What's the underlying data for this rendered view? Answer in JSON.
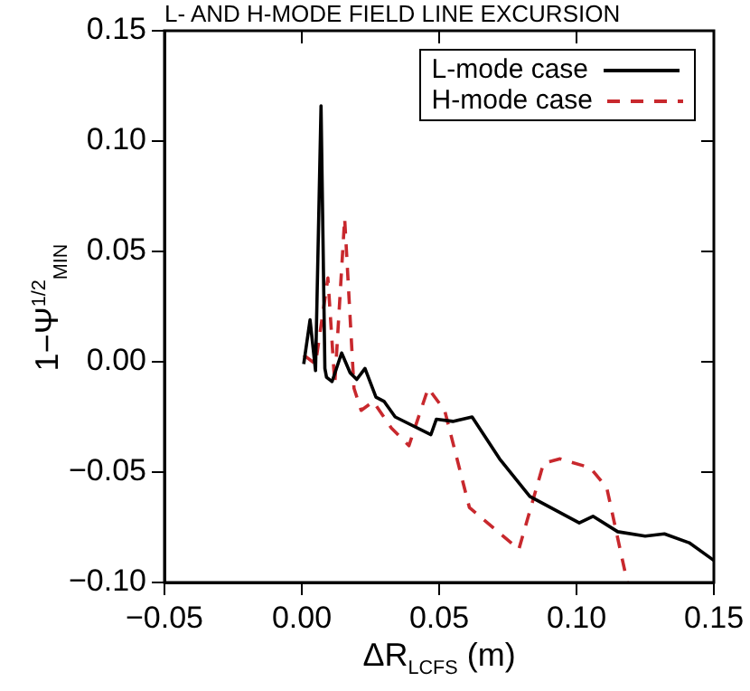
{
  "chart_data": {
    "type": "line",
    "title": "L- AND H-MODE FIELD LINE EXCURSION",
    "xlabel": "ΔR$_{LCFS}$ (m)",
    "ylabel": "1−Ψ$^{1/2}$$_{MIN}$",
    "xlim": [
      -0.05,
      0.15
    ],
    "xticks": [
      {
        "value": -0.05,
        "label": "−0.05"
      },
      {
        "value": 0,
        "label": "0.00"
      },
      {
        "value": 0.05,
        "label": "0.05"
      },
      {
        "value": 0.1,
        "label": "0.10"
      },
      {
        "value": 0.15,
        "label": "0.15"
      }
    ],
    "ylim": [
      -0.1,
      0.15
    ],
    "yticks": [
      {
        "value": -0.1,
        "label": "−0.10"
      },
      {
        "value": -0.05,
        "label": "−0.05"
      },
      {
        "value": 0,
        "label": "0.00"
      },
      {
        "value": 0.05,
        "label": "0.05"
      },
      {
        "value": 0.1,
        "label": "0.10"
      },
      {
        "value": 0.15,
        "label": "0.15"
      }
    ],
    "grid": false,
    "legend": "top right",
    "marker": "none",
    "series": [
      {
        "name": "L-mode case",
        "color": "#000000",
        "line_style": "solid",
        "x": [
          0.0007,
          0.003,
          0.005,
          0.007,
          0.0084,
          0.009,
          0.011,
          0.0145,
          0.0176,
          0.02,
          0.023,
          0.027,
          0.03,
          0.034,
          0.047,
          0.049,
          0.055,
          0.062,
          0.072,
          0.083,
          0.101,
          0.106,
          0.115,
          0.125,
          0.132,
          0.141,
          0.15
        ],
        "values": [
          -0.001,
          0.019,
          -0.004,
          0.116,
          -0.003,
          -0.007,
          -0.009,
          0.004,
          -0.005,
          -0.008,
          -0.003,
          -0.016,
          -0.018,
          -0.025,
          -0.033,
          -0.026,
          -0.027,
          -0.025,
          -0.044,
          -0.061,
          -0.073,
          -0.07,
          -0.077,
          -0.079,
          -0.078,
          -0.082,
          -0.09
        ]
      },
      {
        "name": "H-mode case",
        "color": "#c8282d",
        "line_style": "dashed",
        "x": [
          0.0007,
          0.005,
          0.0095,
          0.012,
          0.0156,
          0.019,
          0.0216,
          0.026,
          0.0326,
          0.039,
          0.046,
          0.052,
          0.061,
          0.079,
          0.088,
          0.094,
          0.105,
          0.111,
          0.1185
        ],
        "values": [
          0.003,
          -0.001,
          0.038,
          -0.01,
          0.065,
          -0.012,
          -0.022,
          -0.018,
          -0.03,
          -0.038,
          -0.012,
          -0.022,
          -0.066,
          -0.085,
          -0.046,
          -0.044,
          -0.048,
          -0.057,
          -0.1
        ]
      }
    ]
  }
}
